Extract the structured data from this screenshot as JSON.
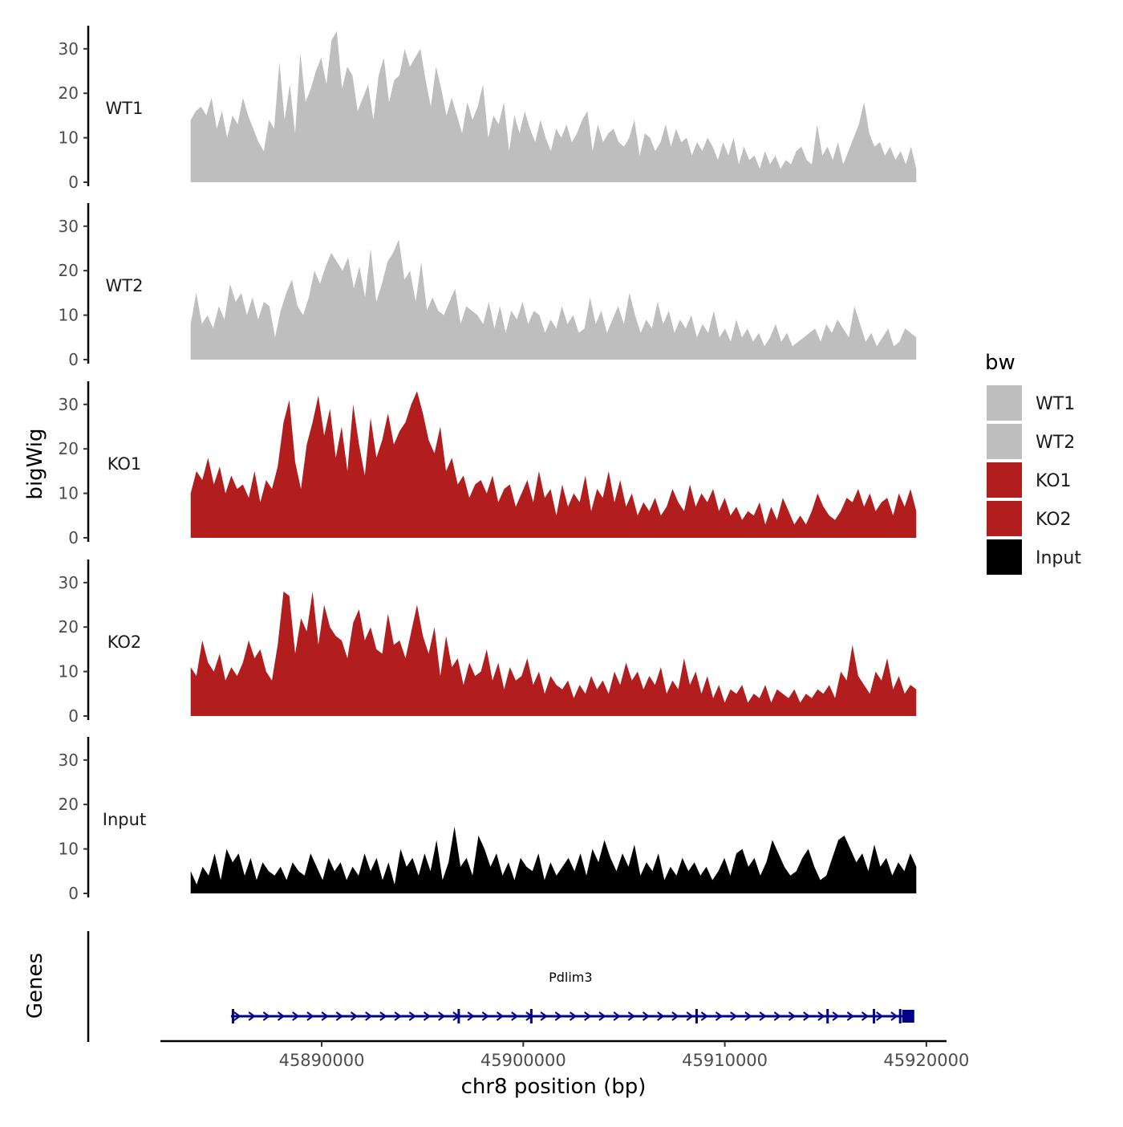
{
  "chart_data": {
    "type": "area",
    "y_axis_label": "bigWig",
    "x_axis_label": "chr8 position (bp)",
    "x_range": [
      45882000,
      45921000
    ],
    "x_ticks": [
      45890000,
      45900000,
      45910000,
      45920000
    ],
    "x_tick_labels": [
      "45890000",
      "45900000",
      "45910000",
      "45920000"
    ],
    "ylim": [
      0,
      35
    ],
    "y_ticks": [
      0,
      10,
      20,
      30
    ],
    "y_tick_labels": [
      "0",
      "10",
      "20",
      "30"
    ],
    "track_start": 45883500,
    "track_end": 45919500,
    "legend_title": "bw",
    "tracks": [
      {
        "name": "WT1",
        "color": "#bebebe",
        "values": [
          14,
          16,
          17,
          15,
          19,
          12,
          16,
          10,
          15,
          13,
          19,
          15,
          12,
          9,
          7,
          14,
          12,
          27,
          14,
          22,
          11,
          29,
          18,
          21,
          25,
          28,
          22,
          32,
          34,
          21,
          26,
          24,
          16,
          19,
          22,
          14,
          24,
          28,
          18,
          23,
          24,
          30,
          26,
          28,
          30,
          23,
          17,
          26,
          21,
          15,
          19,
          15,
          11,
          18,
          14,
          17,
          22,
          10,
          15,
          13,
          18,
          7,
          15,
          11,
          16,
          12,
          9,
          14,
          10,
          7,
          12,
          10,
          13,
          9,
          11,
          14,
          16,
          7,
          13,
          9,
          11,
          12,
          9,
          8,
          10,
          14,
          6,
          11,
          10,
          7,
          9,
          13,
          8,
          12,
          9,
          10,
          6,
          9,
          7,
          10,
          8,
          5,
          9,
          6,
          10,
          4,
          8,
          5,
          6,
          3,
          7,
          4,
          6,
          3,
          5,
          4,
          7,
          8,
          5,
          4,
          13,
          6,
          8,
          5,
          9,
          4,
          7,
          10,
          13,
          18,
          11,
          8,
          9,
          6,
          8,
          5,
          7,
          4,
          8,
          3
        ]
      },
      {
        "name": "WT2",
        "color": "#bebebe",
        "values": [
          8,
          15,
          8,
          10,
          7,
          12,
          9,
          17,
          13,
          15,
          10,
          14,
          9,
          13,
          12,
          5,
          11,
          15,
          18,
          12,
          10,
          14,
          20,
          17,
          21,
          24,
          22,
          20,
          23,
          16,
          21,
          14,
          25,
          13,
          17,
          22,
          24,
          27,
          18,
          20,
          13,
          22,
          11,
          14,
          11,
          10,
          13,
          16,
          8,
          12,
          11,
          10,
          8,
          13,
          7,
          12,
          6,
          11,
          9,
          13,
          8,
          11,
          10,
          6,
          9,
          7,
          12,
          8,
          10,
          6,
          7,
          14,
          8,
          11,
          6,
          9,
          12,
          8,
          15,
          10,
          6,
          9,
          7,
          13,
          8,
          11,
          6,
          9,
          7,
          10,
          5,
          8,
          6,
          11,
          5,
          7,
          4,
          9,
          5,
          7,
          4,
          6,
          3,
          5,
          8,
          4,
          6,
          3,
          4,
          5,
          6,
          7,
          4,
          8,
          6,
          9,
          7,
          5,
          12,
          8,
          4,
          6,
          3,
          5,
          7,
          3,
          4,
          7,
          6,
          5
        ]
      },
      {
        "name": "KO1",
        "color": "#b21e1e",
        "values": [
          10,
          15,
          13,
          18,
          12,
          16,
          10,
          14,
          11,
          12,
          9,
          15,
          8,
          13,
          11,
          16,
          26,
          31,
          17,
          11,
          21,
          26,
          32,
          23,
          29,
          18,
          25,
          15,
          30,
          21,
          14,
          27,
          18,
          22,
          28,
          21,
          24,
          26,
          30,
          33,
          28,
          22,
          19,
          25,
          15,
          18,
          12,
          14,
          9,
          12,
          13,
          10,
          14,
          8,
          11,
          12,
          7,
          10,
          13,
          8,
          15,
          9,
          11,
          5,
          12,
          7,
          10,
          8,
          14,
          6,
          11,
          9,
          15,
          8,
          13,
          7,
          10,
          5,
          8,
          6,
          9,
          5,
          7,
          11,
          8,
          6,
          12,
          7,
          10,
          8,
          11,
          6,
          9,
          5,
          7,
          4,
          6,
          5,
          8,
          3,
          7,
          4,
          9,
          6,
          3,
          5,
          3,
          6,
          10,
          7,
          5,
          4,
          6,
          9,
          8,
          11,
          7,
          10,
          6,
          8,
          9,
          5,
          10,
          7,
          11,
          6
        ]
      },
      {
        "name": "KO2",
        "color": "#b21e1e",
        "values": [
          11,
          9,
          17,
          12,
          10,
          14,
          8,
          11,
          9,
          12,
          17,
          13,
          15,
          10,
          8,
          16,
          28,
          27,
          14,
          22,
          19,
          28,
          16,
          25,
          20,
          18,
          17,
          13,
          21,
          24,
          17,
          20,
          15,
          14,
          23,
          16,
          17,
          13,
          19,
          25,
          18,
          14,
          20,
          9,
          18,
          11,
          13,
          7,
          12,
          9,
          10,
          15,
          8,
          12,
          6,
          11,
          8,
          9,
          13,
          7,
          10,
          5,
          9,
          7,
          6,
          8,
          4,
          7,
          5,
          9,
          6,
          8,
          5,
          10,
          7,
          12,
          8,
          10,
          6,
          9,
          7,
          11,
          5,
          8,
          6,
          13,
          7,
          10,
          5,
          9,
          4,
          7,
          3,
          6,
          5,
          7,
          3,
          5,
          4,
          7,
          3,
          6,
          5,
          4,
          6,
          3,
          5,
          4,
          6,
          5,
          7,
          4,
          10,
          8,
          16,
          9,
          7,
          5,
          10,
          8,
          13,
          6,
          9,
          5,
          7,
          6
        ]
      },
      {
        "name": "Input",
        "color": "#000000",
        "values": [
          5,
          2,
          6,
          4,
          9,
          3,
          10,
          7,
          9,
          4,
          8,
          3,
          7,
          5,
          4,
          6,
          3,
          7,
          5,
          4,
          9,
          6,
          3,
          8,
          5,
          7,
          3,
          6,
          4,
          9,
          5,
          8,
          3,
          7,
          2,
          10,
          6,
          8,
          4,
          9,
          5,
          12,
          3,
          7,
          15,
          6,
          8,
          4,
          13,
          10,
          6,
          9,
          4,
          7,
          3,
          8,
          6,
          5,
          9,
          3,
          7,
          4,
          6,
          8,
          5,
          9,
          4,
          10,
          7,
          12,
          8,
          5,
          9,
          6,
          11,
          4,
          7,
          5,
          9,
          3,
          6,
          4,
          8,
          5,
          7,
          4,
          6,
          3,
          5,
          8,
          4,
          9,
          10,
          6,
          8,
          4,
          7,
          12,
          9,
          6,
          4,
          5,
          8,
          10,
          6,
          3,
          4,
          8,
          12,
          13,
          10,
          7,
          9,
          5,
          11,
          6,
          8,
          4,
          7,
          5,
          9,
          6
        ]
      }
    ],
    "legend_entries": [
      {
        "label": "WT1",
        "color": "#bebebe"
      },
      {
        "label": "WT2",
        "color": "#bebebe"
      },
      {
        "label": "KO1",
        "color": "#b21e1e"
      },
      {
        "label": "KO2",
        "color": "#b21e1e"
      },
      {
        "label": "Input",
        "color": "#000000"
      }
    ],
    "genes_panel": {
      "label": "Genes",
      "gene": {
        "name": "Pdlim3",
        "start": 45885500,
        "end": 45919200,
        "strand": "+",
        "color": "#00008b",
        "exon_ticks": [
          45885600,
          45896800,
          45900400,
          45908600,
          45915100,
          45917400,
          45918700
        ],
        "terminal_exon": [
          45918800,
          45919400
        ]
      }
    }
  }
}
